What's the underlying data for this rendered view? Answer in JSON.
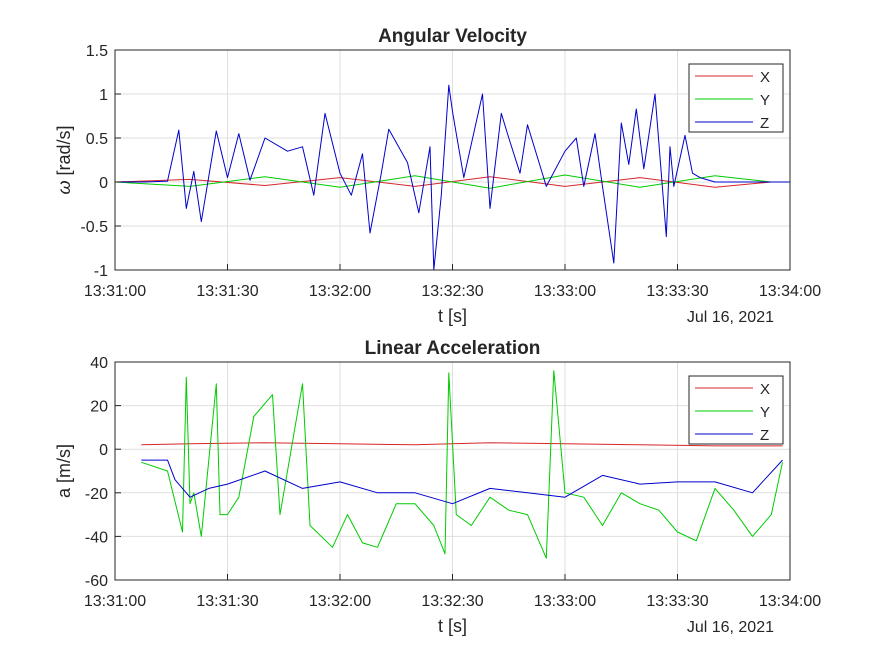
{
  "chart_data": [
    {
      "type": "line",
      "title": "Angular Velocity",
      "xlabel": "t [s]",
      "ylabel_symbol": "ω",
      "ylabel_unit": " [rad/s]",
      "date_label": "Jul 16, 2021",
      "x_ticks": [
        "13:31:00",
        "13:31:30",
        "13:32:00",
        "13:32:30",
        "13:33:00",
        "13:33:30",
        "13:34:00"
      ],
      "y_ticks": [
        -1,
        -0.5,
        0,
        0.5,
        1,
        1.5
      ],
      "xlim": [
        "13:31:00",
        "13:34:00"
      ],
      "ylim": [
        -1,
        1.5
      ],
      "grid": true,
      "legend_position": "top-right",
      "series": [
        {
          "name": "X",
          "color": "#d62728",
          "x": [
            "13:31:00",
            "13:31:20",
            "13:31:40",
            "13:32:00",
            "13:32:20",
            "13:32:40",
            "13:33:00",
            "13:33:20",
            "13:33:40",
            "13:33:55"
          ],
          "y": [
            0,
            0.03,
            -0.04,
            0.05,
            -0.05,
            0.06,
            -0.05,
            0.05,
            -0.06,
            0
          ]
        },
        {
          "name": "Y",
          "color": "#00cc00",
          "x": [
            "13:31:00",
            "13:31:20",
            "13:31:40",
            "13:32:00",
            "13:32:20",
            "13:32:40",
            "13:33:00",
            "13:33:20",
            "13:33:40",
            "13:33:55"
          ],
          "y": [
            0,
            -0.05,
            0.06,
            -0.06,
            0.07,
            -0.07,
            0.08,
            -0.06,
            0.07,
            0
          ]
        },
        {
          "name": "Z",
          "color": "#0000cc",
          "x": [
            "13:31:00",
            "13:31:08",
            "13:31:14",
            "13:31:17",
            "13:31:19",
            "13:31:21",
            "13:31:23",
            "13:31:27",
            "13:31:30",
            "13:31:33",
            "13:31:36",
            "13:31:40",
            "13:31:46",
            "13:31:50",
            "13:31:53",
            "13:31:56",
            "13:32:00",
            "13:32:03",
            "13:32:06",
            "13:32:08",
            "13:32:11",
            "13:32:13",
            "13:32:18",
            "13:32:21",
            "13:32:24",
            "13:32:25",
            "13:32:27",
            "13:32:29",
            "13:32:30",
            "13:32:33",
            "13:32:38",
            "13:32:40",
            "13:32:43",
            "13:32:45",
            "13:32:48",
            "13:32:50",
            "13:32:55",
            "13:33:00",
            "13:33:03",
            "13:33:05",
            "13:33:08",
            "13:33:10",
            "13:33:13",
            "13:33:15",
            "13:33:17",
            "13:33:19",
            "13:33:21",
            "13:33:24",
            "13:33:27",
            "13:33:28",
            "13:33:29",
            "13:33:32",
            "13:33:34",
            "13:33:36",
            "13:33:40",
            "13:33:50",
            "13:34:00"
          ],
          "y": [
            0,
            0,
            0.01,
            0.59,
            -0.3,
            0.12,
            -0.45,
            0.58,
            0.05,
            0.55,
            0.02,
            0.5,
            0.35,
            0.4,
            -0.15,
            0.78,
            0.1,
            -0.15,
            0.32,
            -0.58,
            0.1,
            0.6,
            0.22,
            -0.35,
            0.4,
            -1.0,
            -0.15,
            1.1,
            0.8,
            0.05,
            1.0,
            -0.3,
            0.78,
            0.5,
            0.1,
            0.65,
            -0.05,
            0.35,
            0.5,
            -0.05,
            0.55,
            -0.05,
            -0.92,
            0.67,
            0.2,
            0.83,
            0.15,
            1.0,
            -0.62,
            0.4,
            -0.05,
            0.53,
            0.1,
            0.05,
            0,
            0,
            0
          ]
        }
      ]
    },
    {
      "type": "line",
      "title": "Linear Acceleration",
      "xlabel": "t [s]",
      "ylabel": "a [m/s]",
      "date_label": "Jul 16, 2021",
      "x_ticks": [
        "13:31:00",
        "13:31:30",
        "13:32:00",
        "13:32:30",
        "13:33:00",
        "13:33:30",
        "13:34:00"
      ],
      "y_ticks": [
        -60,
        -40,
        -20,
        0,
        20,
        40
      ],
      "xlim": [
        "13:31:00",
        "13:34:00"
      ],
      "ylim": [
        -60,
        40
      ],
      "grid": true,
      "legend_position": "top-right",
      "series": [
        {
          "name": "X",
          "color": "#d62728",
          "x": [
            "13:31:07",
            "13:31:20",
            "13:31:40",
            "13:32:00",
            "13:32:20",
            "13:32:40",
            "13:33:00",
            "13:33:20",
            "13:33:40",
            "13:33:58"
          ],
          "y": [
            2,
            2.5,
            3,
            2.5,
            2,
            3,
            2.5,
            2,
            1.5,
            1.5
          ]
        },
        {
          "name": "Y",
          "color": "#00cc00",
          "x": [
            "13:31:07",
            "13:31:14",
            "13:31:18",
            "13:31:19",
            "13:31:20",
            "13:31:21",
            "13:31:23",
            "13:31:27",
            "13:31:28",
            "13:31:30",
            "13:31:33",
            "13:31:37",
            "13:31:42",
            "13:31:44",
            "13:31:50",
            "13:31:52",
            "13:31:58",
            "13:32:02",
            "13:32:06",
            "13:32:10",
            "13:32:15",
            "13:32:20",
            "13:32:25",
            "13:32:28",
            "13:32:29",
            "13:32:31",
            "13:32:35",
            "13:32:40",
            "13:32:45",
            "13:32:50",
            "13:32:55",
            "13:32:57",
            "13:33:00",
            "13:33:05",
            "13:33:10",
            "13:33:15",
            "13:33:20",
            "13:33:25",
            "13:33:30",
            "13:33:35",
            "13:33:40",
            "13:33:45",
            "13:33:50",
            "13:33:55",
            "13:33:58"
          ],
          "y": [
            -6,
            -10,
            -38,
            33,
            -25,
            -20,
            -40,
            30,
            -30,
            -30,
            -22,
            15,
            25,
            -30,
            30,
            -35,
            -45,
            -30,
            -43,
            -45,
            -25,
            -25,
            -35,
            -48,
            35,
            -30,
            -35,
            -22,
            -28,
            -30,
            -50,
            36,
            -20,
            -22,
            -35,
            -20,
            -25,
            -28,
            -38,
            -42,
            -18,
            -28,
            -40,
            -30,
            -6
          ]
        },
        {
          "name": "Z",
          "color": "#0000cc",
          "x": [
            "13:31:07",
            "13:31:14",
            "13:31:16",
            "13:31:20",
            "13:31:25",
            "13:31:30",
            "13:31:40",
            "13:31:50",
            "13:32:00",
            "13:32:10",
            "13:32:20",
            "13:32:30",
            "13:32:40",
            "13:32:50",
            "13:33:00",
            "13:33:10",
            "13:33:20",
            "13:33:30",
            "13:33:40",
            "13:33:50",
            "13:33:58"
          ],
          "y": [
            -5,
            -5,
            -14,
            -22,
            -18,
            -16,
            -10,
            -18,
            -15,
            -20,
            -20,
            -25,
            -18,
            -20,
            -22,
            -12,
            -16,
            -15,
            -15,
            -20,
            -5
          ]
        }
      ]
    }
  ]
}
